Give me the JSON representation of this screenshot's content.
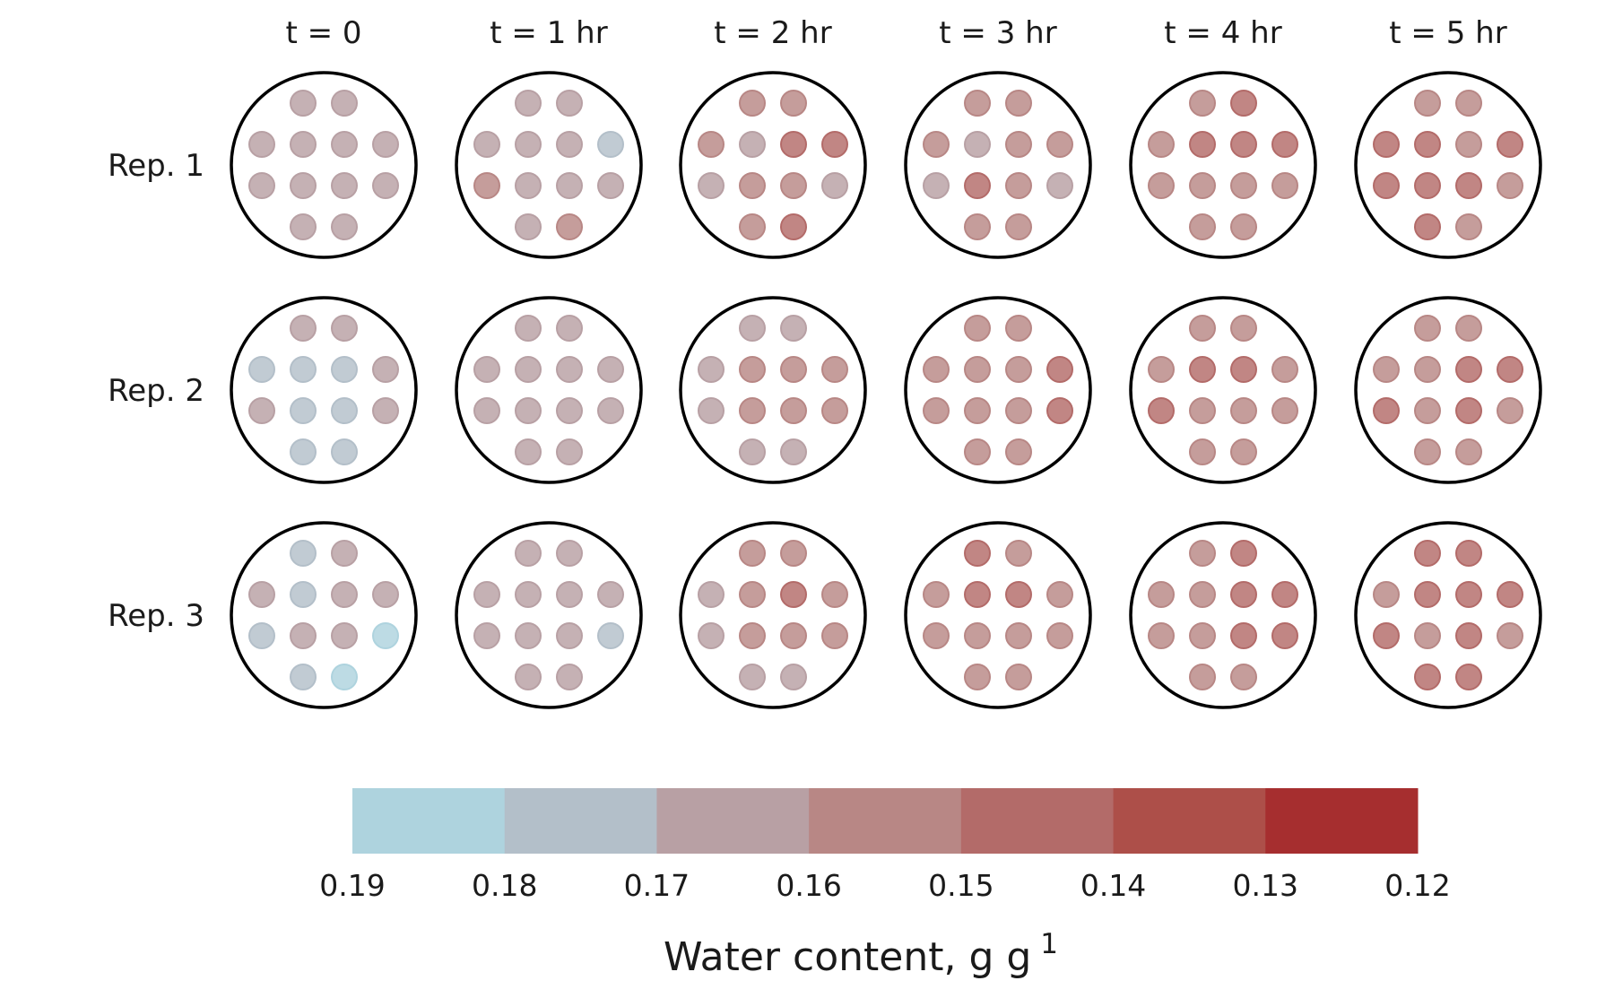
{
  "chart_data": {
    "type": "heatmap",
    "title": "",
    "column_labels": [
      "t = 0",
      "t = 1 hr",
      "t = 2 hr",
      "t = 3 hr",
      "t = 4 hr",
      "t = 5 hr"
    ],
    "row_labels": [
      "Rep. 1",
      "Rep. 2",
      "Rep. 3"
    ],
    "sensor_layout_note_values": [],
    "values": [
      [
        [
          0.169,
          0.169,
          0.169,
          0.169,
          0.169,
          0.169,
          0.169,
          0.169,
          0.169,
          0.169,
          0.164,
          0.169
        ],
        [
          0.164,
          0.164,
          0.164,
          0.169,
          0.164,
          0.178,
          0.156,
          0.164,
          0.169,
          0.164,
          0.164,
          0.155
        ],
        [
          0.155,
          0.158,
          0.155,
          0.168,
          0.149,
          0.147,
          0.162,
          0.156,
          0.158,
          0.162,
          0.155,
          0.149
        ],
        [
          0.157,
          0.151,
          0.151,
          0.163,
          0.152,
          0.151,
          0.162,
          0.149,
          0.151,
          0.161,
          0.151,
          0.157
        ],
        [
          0.153,
          0.145,
          0.151,
          0.145,
          0.145,
          0.146,
          0.154,
          0.152,
          0.155,
          0.154,
          0.153,
          0.155
        ],
        [
          0.154,
          0.154,
          0.147,
          0.146,
          0.155,
          0.147,
          0.146,
          0.147,
          0.145,
          0.157,
          0.148,
          0.155
        ]
      ],
      [
        [
          0.169,
          0.169,
          0.178,
          0.178,
          0.178,
          0.169,
          0.169,
          0.178,
          0.178,
          0.169,
          0.179,
          0.179
        ],
        [
          0.163,
          0.163,
          0.165,
          0.169,
          0.163,
          0.164,
          0.165,
          0.169,
          0.163,
          0.164,
          0.163,
          0.163
        ],
        [
          0.166,
          0.166,
          0.163,
          0.158,
          0.158,
          0.158,
          0.163,
          0.158,
          0.158,
          0.158,
          0.166,
          0.166
        ],
        [
          0.157,
          0.151,
          0.153,
          0.152,
          0.158,
          0.148,
          0.157,
          0.157,
          0.158,
          0.146,
          0.158,
          0.158
        ],
        [
          0.153,
          0.153,
          0.152,
          0.145,
          0.146,
          0.153,
          0.15,
          0.152,
          0.153,
          0.155,
          0.153,
          0.155
        ],
        [
          0.154,
          0.158,
          0.155,
          0.151,
          0.148,
          0.147,
          0.147,
          0.151,
          0.149,
          0.155,
          0.159,
          0.159
        ]
      ],
      [
        [
          0.178,
          0.169,
          0.169,
          0.178,
          0.169,
          0.169,
          0.178,
          0.169,
          0.169,
          0.186,
          0.178,
          0.186
        ],
        [
          0.168,
          0.168,
          0.169,
          0.168,
          0.168,
          0.169,
          0.169,
          0.168,
          0.162,
          0.178,
          0.168,
          0.168
        ],
        [
          0.156,
          0.156,
          0.162,
          0.157,
          0.15,
          0.157,
          0.164,
          0.157,
          0.157,
          0.157,
          0.164,
          0.164
        ],
        [
          0.15,
          0.152,
          0.151,
          0.149,
          0.143,
          0.151,
          0.159,
          0.151,
          0.152,
          0.155,
          0.156,
          0.156
        ],
        [
          0.153,
          0.145,
          0.153,
          0.155,
          0.149,
          0.146,
          0.158,
          0.155,
          0.149,
          0.146,
          0.152,
          0.155
        ],
        [
          0.149,
          0.149,
          0.153,
          0.149,
          0.149,
          0.149,
          0.149,
          0.152,
          0.149,
          0.158,
          0.15,
          0.149
        ]
      ]
    ],
    "colorbar": {
      "label_main": "Water content, g g",
      "label_exponent": "1",
      "ticks": [
        "0.19",
        "0.18",
        "0.17",
        "0.16",
        "0.15",
        "0.14",
        "0.13",
        "0.12"
      ],
      "range": [
        0.19,
        0.12
      ],
      "bins": [
        0.19,
        0.18,
        0.17,
        0.16,
        0.15,
        0.14,
        0.13,
        0.12
      ],
      "colors": [
        "#aed3de",
        "#b3bfc9",
        "#b8a0a4",
        "#b88785",
        "#b36b69",
        "#ad4f49",
        "#a62e2f"
      ]
    }
  }
}
